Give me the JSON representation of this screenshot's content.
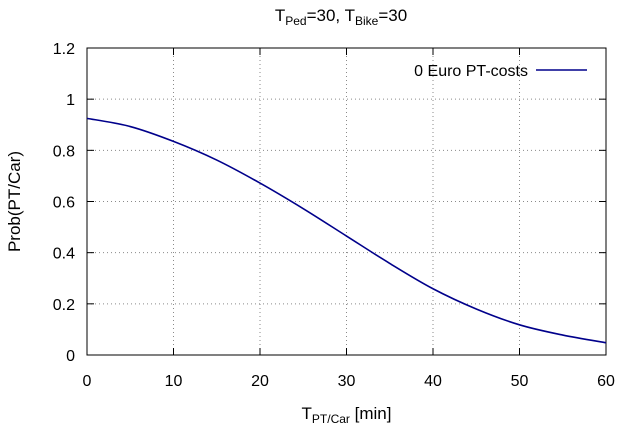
{
  "chart_data": {
    "type": "line",
    "title": {
      "main": "T",
      "sub1": "Ped",
      "mid": "=30, T",
      "sub2": "Bike",
      "tail": "=30"
    },
    "xlabel": {
      "main": "T",
      "sub": "PT/Car",
      "tail": " [min]"
    },
    "ylabel": "Prob(PT/Car)",
    "xlim": [
      0,
      60
    ],
    "ylim": [
      0,
      1.2
    ],
    "xticks": [
      0,
      10,
      20,
      30,
      40,
      50,
      60
    ],
    "yticks": [
      0,
      0.2,
      0.4,
      0.6,
      0.8,
      1,
      1.2
    ],
    "xtick_labels": [
      "0",
      "10",
      "20",
      "30",
      "40",
      "50",
      "60"
    ],
    "ytick_labels": [
      "0",
      "0.2",
      "0.4",
      "0.6",
      "0.8",
      "1",
      "1.2"
    ],
    "grid": true,
    "legend_position": "top-right",
    "series": [
      {
        "name": "0 Euro PT-costs",
        "color": "#00008b",
        "x": [
          0,
          5,
          10,
          15,
          20,
          25,
          30,
          35,
          40,
          45,
          50,
          55,
          60
        ],
        "y": [
          0.925,
          0.893,
          0.835,
          0.762,
          0.672,
          0.572,
          0.465,
          0.358,
          0.259,
          0.18,
          0.118,
          0.078,
          0.048
        ]
      }
    ]
  }
}
